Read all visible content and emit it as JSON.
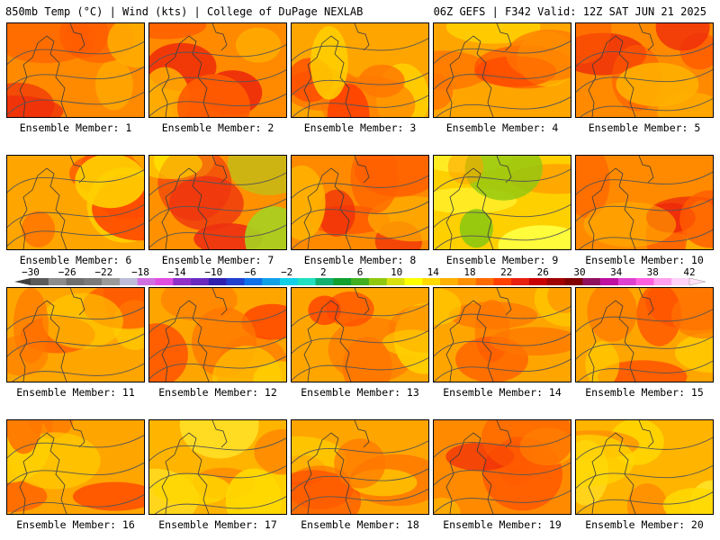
{
  "header": {
    "left": "850mb Temp (°C) | Wind (kts) | College of DuPage NEXLAB",
    "right": "06Z GEFS | F342 Valid: 12Z SAT JUN 21 2025"
  },
  "member_label_prefix": "Ensemble Member:",
  "members": [
    {
      "num": "1",
      "scheme": "hot"
    },
    {
      "num": "2",
      "scheme": "hot"
    },
    {
      "num": "3",
      "scheme": "warm"
    },
    {
      "num": "4",
      "scheme": "warm"
    },
    {
      "num": "5",
      "scheme": "hot"
    },
    {
      "num": "6",
      "scheme": "warm"
    },
    {
      "num": "7",
      "scheme": "split"
    },
    {
      "num": "8",
      "scheme": "hot"
    },
    {
      "num": "9",
      "scheme": "cool"
    },
    {
      "num": "10",
      "scheme": "hot"
    },
    {
      "num": "11",
      "scheme": "warm"
    },
    {
      "num": "12",
      "scheme": "warm"
    },
    {
      "num": "13",
      "scheme": "warm"
    },
    {
      "num": "14",
      "scheme": "warm"
    },
    {
      "num": "15",
      "scheme": "warm"
    },
    {
      "num": "16",
      "scheme": "warm"
    },
    {
      "num": "17",
      "scheme": "mild"
    },
    {
      "num": "18",
      "scheme": "warm"
    },
    {
      "num": "19",
      "scheme": "hot"
    },
    {
      "num": "20",
      "scheme": "mild"
    }
  ],
  "colorbar": {
    "labels": [
      "−30",
      "−26",
      "−22",
      "−18",
      "−14",
      "−10",
      "−6",
      "−2",
      "2",
      "6",
      "10",
      "14",
      "18",
      "22",
      "26",
      "30",
      "34",
      "38",
      "42"
    ],
    "colors": [
      "#5a5a5a",
      "#8c8c8c",
      "#6e6e6e",
      "#7a7a7a",
      "#9a9a9a",
      "#bcbcd8",
      "#d070e0",
      "#e04ee0",
      "#9030c8",
      "#6a2ac0",
      "#3020b0",
      "#2040d0",
      "#1070e8",
      "#10a0e8",
      "#10d0e8",
      "#20e0c0",
      "#10b070",
      "#10a030",
      "#40b020",
      "#90c810",
      "#d8e010",
      "#ffff00",
      "#ffd800",
      "#ffb000",
      "#ff9000",
      "#ff6a00",
      "#ff4000",
      "#e82010",
      "#c80000",
      "#a00000",
      "#800000",
      "#901060",
      "#c010a0",
      "#e040d0",
      "#ff60e0",
      "#ffa0f0",
      "#ffd0f8"
    ]
  },
  "schemes": {
    "hot": {
      "base": "#ff8a00",
      "blobs": [
        "#ff5c00",
        "#ee2a0a",
        "#ffb000"
      ]
    },
    "warm": {
      "base": "#ffa500",
      "blobs": [
        "#ff7600",
        "#ff4400",
        "#ffd000"
      ]
    },
    "mild": {
      "base": "#ffb400",
      "blobs": [
        "#ffd800",
        "#ff8a00",
        "#ffee30"
      ]
    },
    "cool": {
      "base": "#ffd000",
      "blobs": [
        "#ffff40",
        "#90c810",
        "#ffa000"
      ]
    },
    "split": {
      "base": "#ff9000",
      "blobs": [
        "#ee3010",
        "#ffe000",
        "#a8d020"
      ]
    }
  }
}
